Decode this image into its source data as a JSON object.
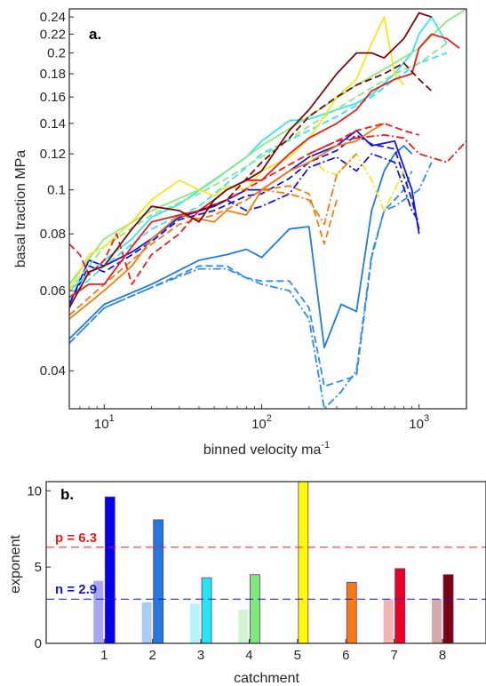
{
  "chart_data": [
    {
      "type": "line",
      "panel_label": "a.",
      "xlabel": "binned velocity ma",
      "xlabel_sup": "-1",
      "ylabel": "basal traction MPa",
      "xscale": "log",
      "yscale": "log",
      "xlim": [
        6,
        2000
      ],
      "ylim": [
        0.033,
        0.25
      ],
      "grid": false,
      "xticks": [
        {
          "value": 10,
          "base": "10",
          "exp": "1"
        },
        {
          "value": 100,
          "base": "10",
          "exp": "2"
        },
        {
          "value": 1000,
          "base": "10",
          "exp": "3"
        }
      ],
      "yticks": [
        {
          "value": 0.04,
          "label": "0.04"
        },
        {
          "value": 0.06,
          "label": "0.06"
        },
        {
          "value": 0.08,
          "label": "0.08"
        },
        {
          "value": 0.1,
          "label": "0.1"
        },
        {
          "value": 0.12,
          "label": "0.12"
        },
        {
          "value": 0.14,
          "label": "0.14"
        },
        {
          "value": 0.16,
          "label": "0.16"
        },
        {
          "value": 0.18,
          "label": "0.18"
        },
        {
          "value": 0.2,
          "label": "0.2"
        },
        {
          "value": 0.22,
          "label": "0.22"
        },
        {
          "value": 0.24,
          "label": "0.24"
        }
      ],
      "series": [
        {
          "color": "#1f7be0",
          "dash": "solid",
          "x": [
            6,
            10,
            20,
            40,
            60,
            80,
            100,
            150,
            200,
            250,
            320,
            400,
            500,
            600,
            700,
            800,
            900
          ],
          "y": [
            0.047,
            0.056,
            0.062,
            0.07,
            0.072,
            0.074,
            0.071,
            0.082,
            0.083,
            0.045,
            0.056,
            0.054,
            0.09,
            0.11,
            0.12,
            0.125,
            0.12
          ]
        },
        {
          "color": "#2c8cf0",
          "dash": "dashed",
          "x": [
            6,
            10,
            20,
            40,
            60,
            80,
            100,
            150,
            200,
            250,
            320,
            400,
            500,
            600,
            700,
            800,
            900
          ],
          "y": [
            0.046,
            0.055,
            0.061,
            0.068,
            0.068,
            0.064,
            0.063,
            0.063,
            0.055,
            0.037,
            0.038,
            0.039,
            0.071,
            0.09,
            0.095,
            0.1,
            0.11
          ]
        },
        {
          "color": "#2c8cf0",
          "dash": "dashdot",
          "x": [
            6,
            10,
            20,
            40,
            60,
            80,
            100,
            150,
            200,
            250,
            320,
            400,
            500,
            600,
            700,
            800,
            1000,
            1200
          ],
          "y": [
            0.046,
            0.055,
            0.061,
            0.067,
            0.067,
            0.064,
            0.062,
            0.06,
            0.052,
            0.033,
            0.036,
            0.04,
            0.072,
            0.09,
            0.092,
            0.095,
            0.1,
            0.115
          ]
        },
        {
          "color": "#1515e0",
          "dash": "solid",
          "x": [
            6,
            8,
            10,
            15,
            20,
            30,
            50,
            80,
            100,
            150,
            200,
            300,
            400,
            500,
            700,
            900,
            1000
          ],
          "y": [
            0.056,
            0.07,
            0.068,
            0.073,
            0.078,
            0.087,
            0.092,
            0.1,
            0.1,
            0.11,
            0.118,
            0.125,
            0.135,
            0.125,
            0.128,
            0.1,
            0.08
          ]
        },
        {
          "color": "#1515e0",
          "dash": "dashed",
          "x": [
            6,
            8,
            10,
            15,
            20,
            30,
            50,
            80,
            100,
            150,
            200,
            300,
            400,
            500,
            700,
            900,
            1000
          ],
          "y": [
            0.056,
            0.068,
            0.066,
            0.072,
            0.077,
            0.086,
            0.09,
            0.097,
            0.098,
            0.106,
            0.115,
            0.122,
            0.132,
            0.126,
            0.123,
            0.095,
            0.082
          ]
        },
        {
          "color": "#1515e0",
          "dash": "dashdot",
          "x": [
            60,
            80,
            100,
            150,
            200,
            300,
            400,
            500,
            700,
            900,
            1000
          ],
          "y": [
            0.095,
            0.09,
            0.092,
            0.098,
            0.112,
            0.118,
            0.11,
            0.12,
            0.115,
            0.09,
            0.085
          ]
        },
        {
          "color": "#33e5f5",
          "dash": "solid",
          "x": [
            6,
            10,
            15,
            20,
            30,
            50,
            80,
            100,
            150,
            200,
            300,
            400,
            500,
            700,
            900,
            1000,
            1200,
            1500
          ],
          "y": [
            0.06,
            0.07,
            0.078,
            0.087,
            0.093,
            0.105,
            0.118,
            0.128,
            0.142,
            0.143,
            0.15,
            0.155,
            0.162,
            0.18,
            0.2,
            0.22,
            0.24,
            0.21
          ]
        },
        {
          "color": "#33e5f5",
          "dash": "dashed",
          "x": [
            6,
            10,
            20,
            40,
            80,
            100,
            200,
            300,
            500,
            700,
            1000,
            1500
          ],
          "y": [
            0.058,
            0.068,
            0.082,
            0.092,
            0.112,
            0.12,
            0.135,
            0.145,
            0.16,
            0.175,
            0.19,
            0.2
          ]
        },
        {
          "color": "#8ae884",
          "dash": "solid",
          "x": [
            6,
            10,
            20,
            40,
            60,
            100,
            200,
            400,
            700,
            1000,
            1500,
            2000
          ],
          "y": [
            0.062,
            0.078,
            0.09,
            0.1,
            0.11,
            0.125,
            0.145,
            0.17,
            0.19,
            0.205,
            0.235,
            0.25
          ]
        },
        {
          "color": "#8ae884",
          "dash": "dashed",
          "x": [
            6,
            10,
            20,
            40,
            60,
            100,
            200,
            400,
            700,
            1000,
            1500
          ],
          "y": [
            0.06,
            0.075,
            0.088,
            0.098,
            0.106,
            0.118,
            0.138,
            0.16,
            0.18,
            0.19,
            0.21
          ]
        },
        {
          "color": "#f2ea1a",
          "dash": "solid",
          "x": [
            6,
            8,
            10,
            15,
            20,
            30,
            40,
            50,
            60,
            80,
            100,
            150,
            200,
            250,
            300,
            400,
            500,
            600,
            700,
            800
          ],
          "y": [
            0.06,
            0.072,
            0.075,
            0.085,
            0.095,
            0.105,
            0.1,
            0.097,
            0.102,
            0.1,
            0.11,
            0.118,
            0.13,
            0.145,
            0.16,
            0.175,
            0.21,
            0.24,
            0.18,
            0.17
          ]
        },
        {
          "color": "#f2ea1a",
          "dash": "dashdot",
          "x": [
            200,
            250,
            300,
            400,
            500,
            600,
            700,
            800
          ],
          "y": [
            0.12,
            0.11,
            0.108,
            0.12,
            0.105,
            0.09,
            0.1,
            0.11
          ]
        },
        {
          "color": "#f57c0f",
          "dash": "solid",
          "x": [
            6,
            10,
            15,
            20,
            30,
            50,
            60,
            80,
            100,
            150,
            200,
            300,
            400,
            500,
            600
          ],
          "y": [
            0.052,
            0.06,
            0.068,
            0.078,
            0.088,
            0.085,
            0.09,
            0.088,
            0.1,
            0.11,
            0.115,
            0.125,
            0.128,
            0.135,
            0.14
          ]
        },
        {
          "color": "#f57c0f",
          "dash": "dashed",
          "x": [
            6,
            10,
            15,
            20,
            30,
            50,
            80,
            100,
            150,
            200,
            250,
            300
          ],
          "y": [
            0.053,
            0.062,
            0.07,
            0.076,
            0.084,
            0.088,
            0.095,
            0.1,
            0.102,
            0.098,
            0.076,
            0.095
          ]
        },
        {
          "color": "#f57c0f",
          "dash": "dashdot",
          "x": [
            100,
            150,
            200,
            250,
            300,
            400
          ],
          "y": [
            0.1,
            0.098,
            0.095,
            0.084,
            0.108,
            0.12
          ]
        },
        {
          "color": "#ee1c1c",
          "dash": "solid",
          "x": [
            6,
            8,
            10,
            15,
            20,
            30,
            40,
            50,
            60,
            80,
            100,
            150,
            200,
            300,
            400,
            500,
            700,
            900,
            1000,
            1200,
            1500,
            1800
          ],
          "y": [
            0.058,
            0.062,
            0.062,
            0.075,
            0.085,
            0.088,
            0.09,
            0.095,
            0.1,
            0.105,
            0.105,
            0.12,
            0.13,
            0.14,
            0.15,
            0.165,
            0.175,
            0.18,
            0.205,
            0.22,
            0.215,
            0.205
          ]
        },
        {
          "color": "#ee1c1c",
          "dash": "dashed",
          "x": [
            6,
            7,
            8,
            10,
            12,
            15,
            20,
            30,
            40,
            60,
            100,
            200,
            300,
            400,
            600,
            800,
            1000
          ],
          "y": [
            0.076,
            0.072,
            0.065,
            0.07,
            0.08,
            0.062,
            0.072,
            0.08,
            0.09,
            0.095,
            0.105,
            0.12,
            0.128,
            0.135,
            0.14,
            0.135,
            0.132
          ]
        },
        {
          "color": "#ee1c1c",
          "dash": "dashdot",
          "x": [
            200,
            300,
            400,
            600,
            800,
            1000,
            1500,
            2000
          ],
          "y": [
            0.12,
            0.128,
            0.13,
            0.132,
            0.13,
            0.12,
            0.115,
            0.128
          ]
        },
        {
          "color": "#7a0a0a",
          "dash": "solid",
          "x": [
            6,
            8,
            10,
            15,
            20,
            30,
            40,
            50,
            60,
            80,
            100,
            150,
            200,
            300,
            400,
            500,
            600,
            800,
            1000,
            1200
          ],
          "y": [
            0.055,
            0.066,
            0.068,
            0.082,
            0.092,
            0.09,
            0.085,
            0.095,
            0.1,
            0.105,
            0.11,
            0.135,
            0.15,
            0.18,
            0.2,
            0.2,
            0.195,
            0.215,
            0.245,
            0.24
          ]
        },
        {
          "color": "#7a0a0a",
          "dash": "dashed",
          "x": [
            40,
            60,
            100,
            150,
            200,
            300,
            400,
            600,
            800,
            1000,
            1200
          ],
          "y": [
            0.09,
            0.095,
            0.115,
            0.13,
            0.145,
            0.16,
            0.17,
            0.18,
            0.19,
            0.175,
            0.165
          ]
        }
      ]
    },
    {
      "type": "bar",
      "panel_label": "b.",
      "xlabel": "catchment",
      "ylabel": "exponent",
      "ylim": [
        0,
        10.6
      ],
      "xlim": [
        -0.2,
        8.9
      ],
      "categories": [
        "1",
        "2",
        "3",
        "4",
        "5",
        "6",
        "7",
        "8"
      ],
      "yticks": [
        {
          "value": 0,
          "label": "0"
        },
        {
          "value": 5,
          "label": "5"
        },
        {
          "value": 10,
          "label": "10"
        }
      ],
      "n_values": [
        4.1,
        2.7,
        2.6,
        2.2,
        0,
        0,
        2.9,
        2.9
      ],
      "p_values": [
        9.6,
        8.1,
        4.3,
        4.5,
        10.6,
        4.0,
        4.9,
        4.5
      ],
      "colors_p": [
        "#0000ee",
        "#1f7be0",
        "#22e8f5",
        "#7ee87a",
        "#fffb00",
        "#f57c0f",
        "#ee0022",
        "#7a0010"
      ],
      "colors_n": [
        "#a8a8f2",
        "#a9cdf5",
        "#b4f3f8",
        "#d2f5cf",
        "#ffffff",
        "#ffffff",
        "#f5b4b4",
        "#d6aaaa"
      ],
      "ref_lines": [
        {
          "label": "p = 6.3",
          "value": 6.3,
          "color": "#ee1c1c"
        },
        {
          "label": "n = 2.9",
          "value": 2.9,
          "color": "#1515cc"
        }
      ]
    }
  ]
}
